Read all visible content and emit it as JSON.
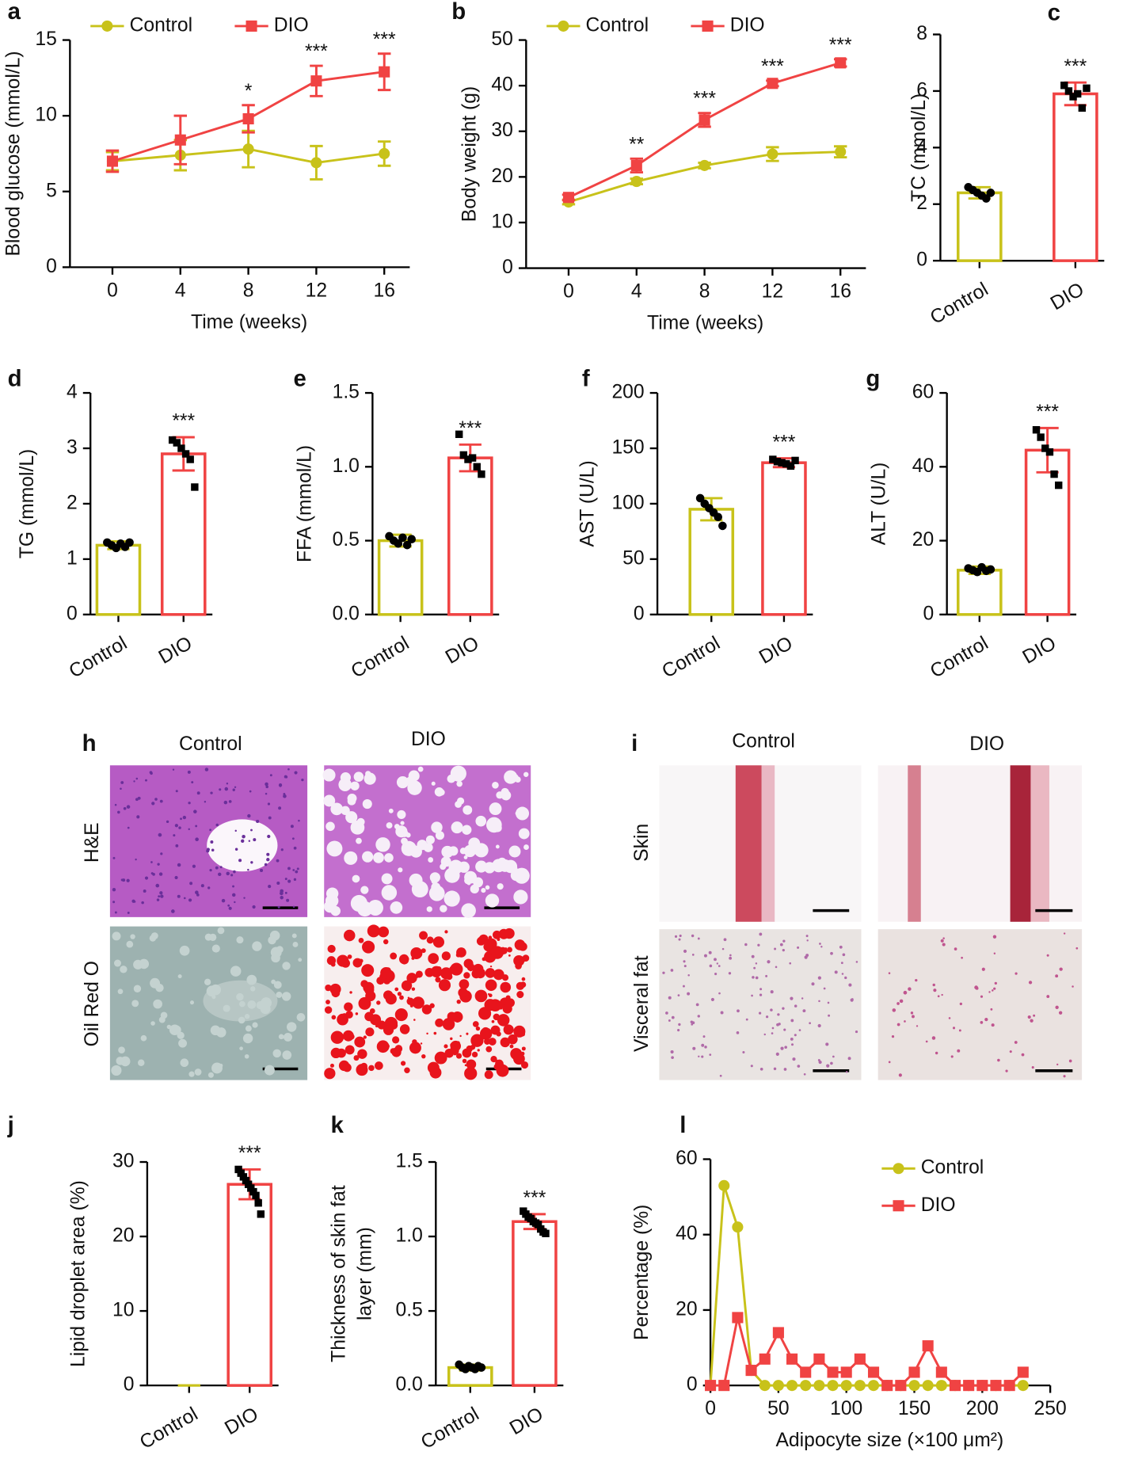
{
  "chart_data": [
    {
      "type": "line",
      "label": "a",
      "ylabel": "Blood glucose (mmol/L)",
      "xlabel": "Time (weeks)",
      "x": [
        0,
        4,
        8,
        12,
        16
      ],
      "xlim": [
        -2.5,
        17.5
      ],
      "xticks": [
        0,
        4,
        8,
        12,
        16
      ],
      "ylim": [
        0,
        15
      ],
      "yticks": [
        0,
        5,
        10,
        15
      ],
      "series": [
        {
          "name": "Control",
          "color": "#c8c21a",
          "marker": "circle",
          "values": [
            7.0,
            7.4,
            7.8,
            6.9,
            7.5
          ],
          "errors": [
            0.6,
            1.0,
            1.2,
            1.1,
            0.8
          ]
        },
        {
          "name": "DIO",
          "color": "#f04343",
          "marker": "square",
          "values": [
            7.0,
            8.4,
            9.8,
            12.3,
            12.9
          ],
          "errors": [
            0.7,
            1.6,
            0.9,
            1.0,
            1.2
          ]
        }
      ],
      "significance": [
        null,
        null,
        "*",
        "***",
        "***"
      ]
    },
    {
      "type": "line",
      "label": "b",
      "ylabel": "Body weight (g)",
      "xlabel": "Time (weeks)",
      "x": [
        0,
        4,
        8,
        12,
        16
      ],
      "xlim": [
        -2.5,
        17.5
      ],
      "xticks": [
        0,
        4,
        8,
        12,
        16
      ],
      "ylim": [
        0,
        50
      ],
      "yticks": [
        0,
        10,
        20,
        30,
        40,
        50
      ],
      "series": [
        {
          "name": "Control",
          "color": "#c8c21a",
          "marker": "circle",
          "values": [
            14.5,
            19,
            22.5,
            25,
            25.5
          ],
          "errors": [
            0.5,
            0.6,
            0.6,
            1.5,
            1.2
          ]
        },
        {
          "name": "DIO",
          "color": "#f04343",
          "marker": "square",
          "values": [
            15.5,
            22.5,
            32.5,
            40.5,
            45
          ],
          "errors": [
            0.6,
            1.5,
            1.5,
            0.6,
            0.8
          ]
        }
      ],
      "significance": [
        null,
        "**",
        "***",
        "***",
        "***"
      ]
    },
    {
      "type": "bar",
      "label": "c",
      "ylabel": "TC (mmol/L)",
      "categories": [
        "Control",
        "DIO"
      ],
      "colors": [
        "#c8c21a",
        "#f04343"
      ],
      "values": [
        2.4,
        5.9
      ],
      "errors": [
        0.2,
        0.4
      ],
      "ylim": [
        0,
        8
      ],
      "yticks": [
        0,
        2,
        4,
        6,
        8
      ],
      "points": [
        [
          2.6,
          2.5,
          2.4,
          2.3,
          2.2,
          2.4
        ],
        [
          6.2,
          6.0,
          5.8,
          5.9,
          5.4,
          6.1
        ]
      ],
      "significance": [
        null,
        "***"
      ]
    },
    {
      "type": "bar",
      "label": "d",
      "ylabel": "TG (mmol/L)",
      "categories": [
        "Control",
        "DIO"
      ],
      "colors": [
        "#c8c21a",
        "#f04343"
      ],
      "values": [
        1.25,
        2.9
      ],
      "errors": [
        0.07,
        0.3
      ],
      "ylim": [
        0,
        4
      ],
      "yticks": [
        0,
        1,
        2,
        3,
        4
      ],
      "points": [
        [
          1.3,
          1.25,
          1.2,
          1.28,
          1.22,
          1.3
        ],
        [
          3.15,
          3.1,
          3.0,
          2.9,
          2.8,
          2.3
        ]
      ],
      "significance": [
        null,
        "***"
      ]
    },
    {
      "type": "bar",
      "label": "e",
      "ylabel": "FFA (mmol/L)",
      "categories": [
        "Control",
        "DIO"
      ],
      "colors": [
        "#c8c21a",
        "#f04343"
      ],
      "values": [
        0.5,
        1.06
      ],
      "errors": [
        0.04,
        0.09
      ],
      "ylim": [
        0,
        1.5
      ],
      "yticks": [
        {
          "value": 0,
          "label": "0.0"
        },
        {
          "value": 0.5,
          "label": "0.5"
        },
        {
          "value": 1,
          "label": "1.0"
        },
        {
          "value": 1.5,
          "label": "1.5"
        }
      ],
      "points": [
        [
          0.53,
          0.5,
          0.48,
          0.52,
          0.47,
          0.51
        ],
        [
          1.22,
          1.08,
          1.05,
          1.06,
          1.0,
          0.95
        ]
      ],
      "significance": [
        null,
        "***"
      ]
    },
    {
      "type": "bar",
      "label": "f",
      "ylabel": "AST (U/L)",
      "categories": [
        "Control",
        "DIO"
      ],
      "colors": [
        "#c8c21a",
        "#f04343"
      ],
      "values": [
        95,
        137
      ],
      "errors": [
        10,
        4
      ],
      "ylim": [
        0,
        200
      ],
      "yticks": [
        0,
        50,
        100,
        150,
        200
      ],
      "points": [
        [
          105,
          100,
          96,
          92,
          88,
          80
        ],
        [
          140,
          138,
          137,
          136,
          134,
          139
        ]
      ],
      "significance": [
        null,
        "***"
      ]
    },
    {
      "type": "bar",
      "label": "g",
      "ylabel": "ALT (U/L)",
      "categories": [
        "Control",
        "DIO"
      ],
      "colors": [
        "#c8c21a",
        "#f04343"
      ],
      "values": [
        12,
        44.5
      ],
      "errors": [
        1,
        6
      ],
      "ylim": [
        0,
        60
      ],
      "yticks": [
        0,
        20,
        40,
        60
      ],
      "points": [
        [
          12.5,
          12,
          11.5,
          12.8,
          11.8,
          12.2
        ],
        [
          50,
          48,
          45,
          44,
          38,
          35
        ]
      ],
      "significance": [
        null,
        "***"
      ]
    },
    {
      "type": "bar",
      "label": "j",
      "ylabel": "Lipid droplet area (%)",
      "categories": [
        "Control",
        "DIO"
      ],
      "colors": [
        "#c8c21a",
        "#f04343"
      ],
      "values": [
        0,
        27
      ],
      "errors": [
        0,
        2
      ],
      "ylim": [
        0,
        30
      ],
      "yticks": [
        0,
        10,
        20,
        30
      ],
      "points": [
        [],
        [
          29,
          28.5,
          28,
          27.5,
          27,
          26.5,
          26,
          25.5,
          24.5,
          23
        ]
      ],
      "significance": [
        null,
        "***"
      ]
    },
    {
      "type": "bar",
      "label": "k",
      "ylabel": [
        "Thickness of skin fat",
        "layer (mm)"
      ],
      "categories": [
        "Control",
        "DIO"
      ],
      "colors": [
        "#c8c21a",
        "#f04343"
      ],
      "values": [
        0.12,
        1.1
      ],
      "errors": [
        0.02,
        0.05
      ],
      "ylim": [
        0,
        1.5
      ],
      "yticks": [
        {
          "value": 0,
          "label": "0.0"
        },
        {
          "value": 0.5,
          "label": "0.5"
        },
        {
          "value": 1,
          "label": "1.0"
        },
        {
          "value": 1.5,
          "label": "1.5"
        }
      ],
      "points": [
        [
          0.14,
          0.12,
          0.11,
          0.13,
          0.12,
          0.11,
          0.13,
          0.12
        ],
        [
          1.17,
          1.15,
          1.13,
          1.12,
          1.1,
          1.09,
          1.08,
          1.05,
          1.03,
          1.02
        ]
      ],
      "significance": [
        null,
        "***"
      ]
    },
    {
      "type": "line",
      "label": "l",
      "ylabel": "Percentage (%)",
      "xlabel": "Adipocyte size (×100 μm²)",
      "x": [
        0,
        10,
        20,
        30,
        40,
        50,
        60,
        70,
        80,
        90,
        100,
        110,
        120,
        130,
        140,
        150,
        160,
        170,
        180,
        190,
        200,
        210,
        220,
        230
      ],
      "xlim": [
        0,
        250
      ],
      "xticks": [
        0,
        50,
        100,
        150,
        200,
        250
      ],
      "ylim": [
        0,
        60
      ],
      "yticks": [
        0,
        20,
        40,
        60
      ],
      "series": [
        {
          "name": "Control",
          "color": "#c8c21a",
          "marker": "circle",
          "values": [
            0,
            53,
            42,
            4,
            0,
            0,
            0,
            0,
            0,
            0,
            0,
            0,
            0,
            0,
            0,
            0,
            0,
            0,
            0,
            0,
            0,
            0,
            0,
            0
          ]
        },
        {
          "name": "DIO",
          "color": "#f04343",
          "marker": "square",
          "values": [
            0,
            0,
            18,
            4,
            7,
            14,
            7,
            3.5,
            7,
            3.5,
            3.5,
            7,
            3.5,
            0,
            0,
            3.5,
            10.5,
            3.5,
            0,
            0,
            0,
            0,
            0,
            3.5
          ]
        }
      ]
    }
  ],
  "micrographs": [
    {
      "label": "h",
      "columns": [
        "Control",
        "DIO"
      ],
      "rows": [
        "H&E",
        "Oil Red O"
      ]
    },
    {
      "label": "i",
      "columns": [
        "Control",
        "DIO"
      ],
      "rows": [
        "Skin",
        "Visceral fat"
      ]
    }
  ]
}
